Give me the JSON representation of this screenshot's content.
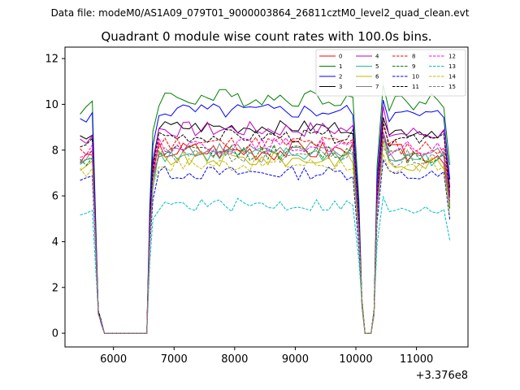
{
  "chart_data": {
    "type": "line",
    "suptitle": "Data file: modeM0/AS1A09_079T01_9000003864_26811cztM0_level2_quad_clean.evt",
    "title": "Quadrant 0 module wise count rates with 100.0s bins.",
    "xlabel": "",
    "ylabel": "",
    "x_offset_label": "+3.376e8",
    "xlim": [
      5200,
      11850
    ],
    "ylim": [
      -0.6,
      12.5
    ],
    "xticks": [
      6000,
      7000,
      8000,
      9000,
      10000,
      11000
    ],
    "xtick_labels": [
      "6000",
      "7000",
      "8000",
      "9000",
      "10000",
      "11000"
    ],
    "yticks": [
      0,
      2,
      4,
      6,
      8,
      10,
      12
    ],
    "ytick_labels": [
      "0",
      "2",
      "4",
      "6",
      "8",
      "10",
      "12"
    ],
    "legend_position": "top-right",
    "series": [
      {
        "name": "0",
        "color": "#ff0000",
        "dash": "solid",
        "level": 8.0,
        "amp": 0.45
      },
      {
        "name": "1",
        "color": "#008000",
        "dash": "solid",
        "level": 10.3,
        "amp": 0.4
      },
      {
        "name": "2",
        "color": "#0000ff",
        "dash": "solid",
        "level": 9.7,
        "amp": 0.35
      },
      {
        "name": "3",
        "color": "#000000",
        "dash": "solid",
        "level": 9.0,
        "amp": 0.3
      },
      {
        "name": "4",
        "color": "#bf00bf",
        "dash": "solid",
        "level": 8.9,
        "amp": 0.35
      },
      {
        "name": "5",
        "color": "#20c090",
        "dash": "solid",
        "level": 7.8,
        "amp": 0.35
      },
      {
        "name": "6",
        "color": "#c8b400",
        "dash": "solid",
        "level": 7.6,
        "amp": 0.35
      },
      {
        "name": "7",
        "color": "#808080",
        "dash": "solid",
        "level": 8.0,
        "amp": 0.35
      },
      {
        "name": "8",
        "color": "#ff0000",
        "dash": "dashed",
        "level": 8.3,
        "amp": 0.35
      },
      {
        "name": "9",
        "color": "#008000",
        "dash": "dashed",
        "level": 7.9,
        "amp": 0.35
      },
      {
        "name": "10",
        "color": "#0000ff",
        "dash": "dashed",
        "level": 7.0,
        "amp": 0.3
      },
      {
        "name": "11",
        "color": "#000000",
        "dash": "dashed",
        "level": 8.6,
        "amp": 0.3
      },
      {
        "name": "12",
        "color": "#ff00ff",
        "dash": "dashed",
        "level": 8.2,
        "amp": 0.35
      },
      {
        "name": "13",
        "color": "#00bfbf",
        "dash": "dashed",
        "level": 5.6,
        "amp": 0.3
      },
      {
        "name": "14",
        "color": "#bfbf00",
        "dash": "dashed",
        "level": 7.4,
        "amp": 0.35
      },
      {
        "name": "15",
        "color": "#808080",
        "dash": "dashed",
        "level": 7.8,
        "amp": 0.4
      }
    ],
    "x": [
      5450,
      5550,
      5650,
      5750,
      5800,
      5850,
      5950,
      6050,
      6150,
      6250,
      6350,
      6450,
      6550,
      6600,
      6650,
      6750,
      6850,
      6950,
      7050,
      7150,
      7250,
      7350,
      7450,
      7550,
      7650,
      7750,
      7850,
      7950,
      8050,
      8150,
      8250,
      8350,
      8450,
      8550,
      8650,
      8750,
      8850,
      8950,
      9050,
      9150,
      9250,
      9350,
      9450,
      9550,
      9650,
      9750,
      9850,
      9950,
      10050,
      10100,
      10150,
      10200,
      10250,
      10300,
      10350,
      10450,
      10550,
      10650,
      10750,
      10850,
      10950,
      11050,
      11150,
      11250,
      11350,
      11450,
      11550
    ]
  }
}
